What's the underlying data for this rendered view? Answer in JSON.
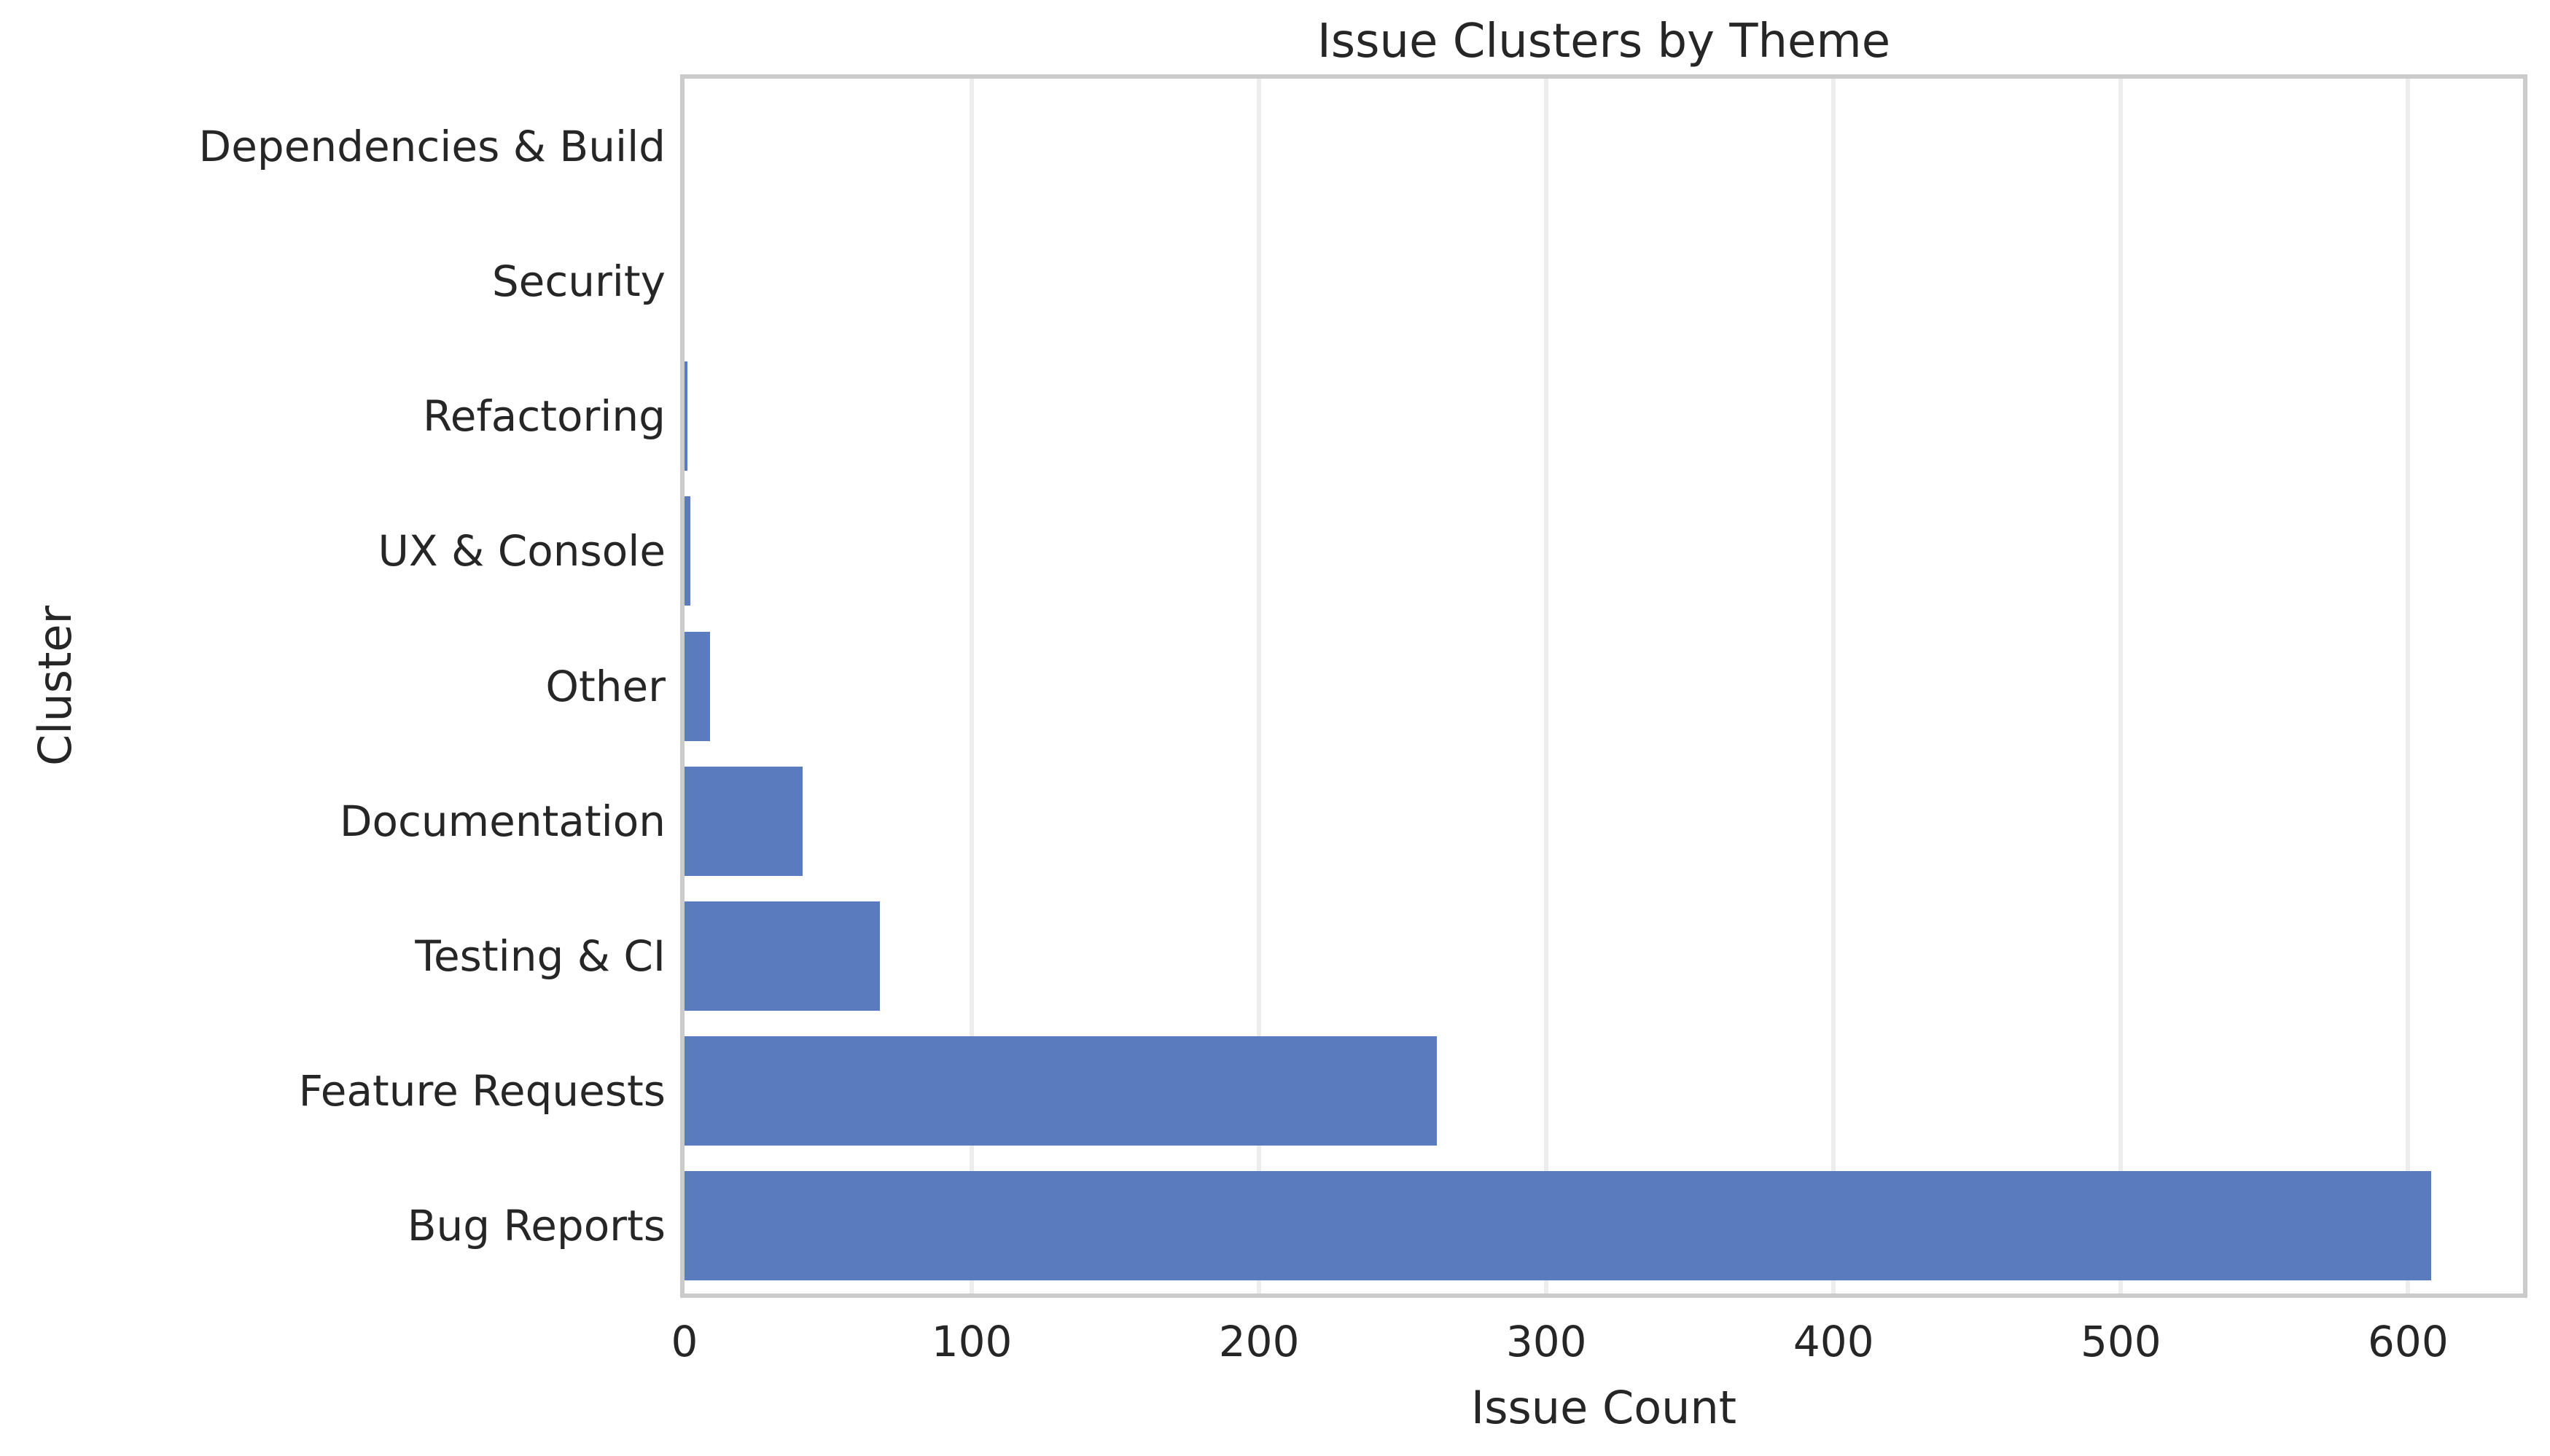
{
  "chart_data": {
    "type": "bar",
    "orientation": "horizontal",
    "title": "Issue Clusters by Theme",
    "xlabel": "Issue Count",
    "ylabel": "Cluster",
    "categories": [
      "Dependencies & Build",
      "Security",
      "Refactoring",
      "UX & Console",
      "Other",
      "Documentation",
      "Testing & CI",
      "Feature Requests",
      "Bug Reports"
    ],
    "values": [
      0,
      0,
      1,
      2,
      9,
      41,
      68,
      262,
      608
    ],
    "xticks": [
      0,
      100,
      200,
      300,
      400,
      500,
      600
    ],
    "xlim": [
      0,
      640
    ],
    "grid": "vertical",
    "legend": "none",
    "bar_color": "#5a7cbf",
    "grid_color": "#ededed",
    "spine_color": "#cbcbcb",
    "text_color": "#262626",
    "background_color": "#ffffff"
  }
}
